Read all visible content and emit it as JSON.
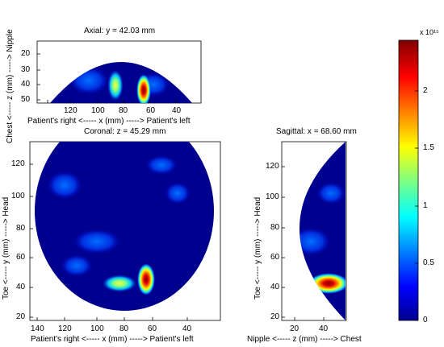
{
  "panels": {
    "axial": {
      "title": "Axial: y = 42.03 mm",
      "x_label": "Patient's right <-----    x (mm)    -----> Patient's left",
      "y_label": "Chest <-----    z (mm)    -----> Nipple",
      "x_ticks": [
        "120",
        "100",
        "80",
        "60",
        "40"
      ],
      "y_ticks": [
        "20",
        "30",
        "40",
        "50"
      ]
    },
    "coronal": {
      "title": "Coronal: z = 45.29 mm",
      "x_label": "Patient's right <-----    x (mm)    -----> Patient's left",
      "y_label": "Toe <-----    y (mm)    -----> Head",
      "x_ticks": [
        "140",
        "120",
        "100",
        "80",
        "60",
        "40"
      ],
      "y_ticks": [
        "20",
        "40",
        "60",
        "80",
        "100",
        "120"
      ]
    },
    "sagittal": {
      "title": "Sagittal: x = 68.60 mm",
      "x_label": "Nipple <-----    z (mm)    -----> Chest",
      "y_label": "Toe <-----    y (mm)    -----> Head",
      "x_ticks": [
        "20",
        "40"
      ],
      "y_ticks": [
        "20",
        "40",
        "60",
        "80",
        "100",
        "120"
      ]
    }
  },
  "colorbar": {
    "exponent": "x 10¹⁵",
    "ticks": [
      "0",
      "0.5",
      "1",
      "1.5",
      "2"
    ],
    "colormap": "jet"
  },
  "colors": {
    "background_low": "#00008f",
    "hot": "#8f0000"
  }
}
